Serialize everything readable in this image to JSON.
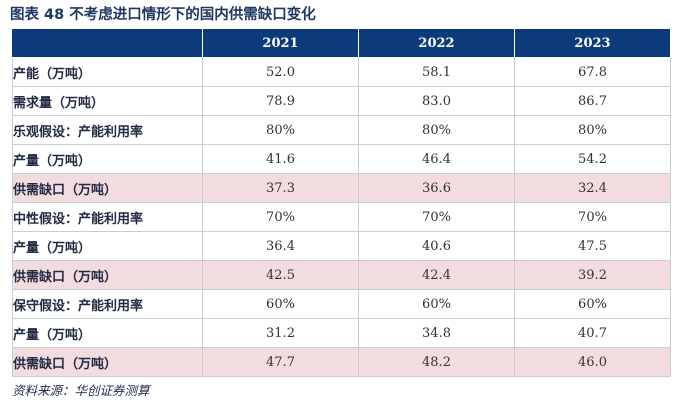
{
  "title": "图表 48   不考虑进口情形下的国内供需缺口变化",
  "columns": [
    "",
    "2021",
    "2022",
    "2023"
  ],
  "rows": [
    {
      "label": "产能（万吨）",
      "values": [
        "52.0",
        "58.1",
        "67.8"
      ],
      "highlight": false
    },
    {
      "label": "需求量（万吨）",
      "values": [
        "78.9",
        "83.0",
        "86.7"
      ],
      "highlight": false
    },
    {
      "label": "乐观假设：产能利用率",
      "values": [
        "80%",
        "80%",
        "80%"
      ],
      "highlight": false
    },
    {
      "label": "产量（万吨）",
      "values": [
        "41.6",
        "46.4",
        "54.2"
      ],
      "highlight": false
    },
    {
      "label": "供需缺口（万吨）",
      "values": [
        "37.3",
        "36.6",
        "32.4"
      ],
      "highlight": true
    },
    {
      "label": "中性假设：产能利用率",
      "values": [
        "70%",
        "70%",
        "70%"
      ],
      "highlight": false
    },
    {
      "label": "产量（万吨）",
      "values": [
        "36.4",
        "40.6",
        "47.5"
      ],
      "highlight": false
    },
    {
      "label": "供需缺口（万吨）",
      "values": [
        "42.5",
        "42.4",
        "39.2"
      ],
      "highlight": true
    },
    {
      "label": "保守假设：产能利用率",
      "values": [
        "60%",
        "60%",
        "60%"
      ],
      "highlight": false
    },
    {
      "label": "产量（万吨）",
      "values": [
        "31.2",
        "34.8",
        "40.7"
      ],
      "highlight": false
    },
    {
      "label": "供需缺口（万吨）",
      "values": [
        "47.7",
        "48.2",
        "46.0"
      ],
      "highlight": true
    }
  ],
  "source": "资料来源：华创证券测算",
  "colors": {
    "header_bg": "#0d3a7a",
    "highlight_bg": "#f2dcdf",
    "title": "#1f3864"
  }
}
